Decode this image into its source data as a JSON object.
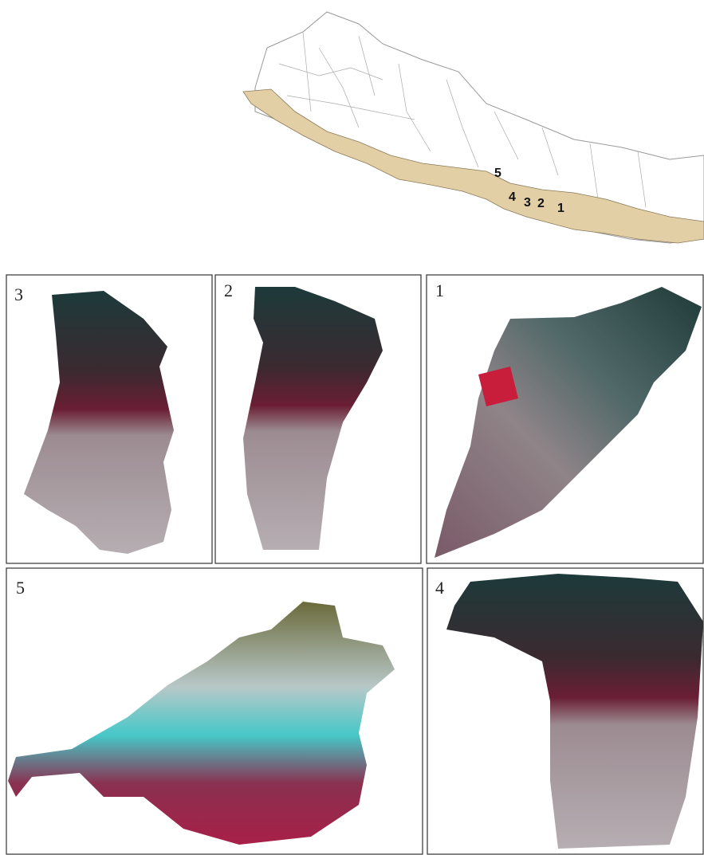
{
  "map": {
    "labels": [
      "5",
      "4",
      "3",
      "2",
      "1"
    ]
  },
  "panels": [
    {
      "label": "3"
    },
    {
      "label": "2"
    },
    {
      "label": "1"
    },
    {
      "label": "5"
    },
    {
      "label": "4"
    }
  ]
}
